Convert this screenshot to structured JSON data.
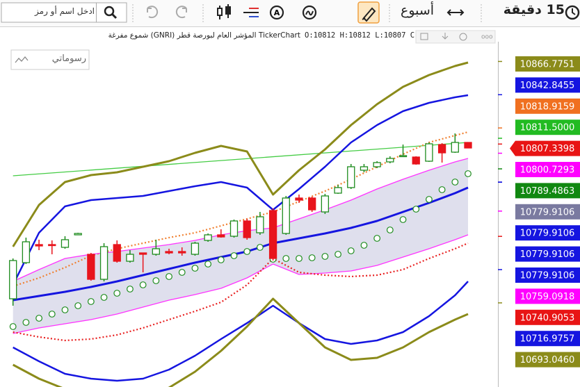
{
  "toolbar": {
    "interval": "15 دقيقة",
    "period": "أسبوع",
    "search_placeholder": "ادخل اسم أو رمز"
  },
  "info": {
    "title": "TickerChart المؤشر العام لبورصة قطر (GNRI) شموع مفرغة",
    "open": "O:10812",
    "high": "H:10812",
    "low": "L:10807",
    "close": "C"
  },
  "drawings_label": "رسوماتي",
  "chart_data": {
    "type": "candlestick",
    "xlim": [
      -1,
      37.3
    ],
    "ylim": [
      10632.5,
      10881
    ],
    "candles": {
      "up_color": "#1e8c1e",
      "down_color": "#e8141c",
      "open": [
        10696,
        10722,
        10735,
        10735,
        10733,
        10742,
        10728,
        10710,
        10735,
        10723,
        10729,
        10728,
        10730,
        10730,
        10728,
        10738,
        10742,
        10741,
        10752,
        10743.5,
        10759.5,
        10743,
        10768.5,
        10768.5,
        10758.5,
        10772,
        10776,
        10788.5,
        10791,
        10794.5,
        10798.5,
        10798,
        10795,
        10807,
        10801.5,
        10808.5
      ],
      "high": [
        10725,
        10740,
        10738.5,
        10738,
        10741,
        10743.5,
        10729,
        10736,
        10738,
        10731,
        10729,
        10738.5,
        10732,
        10733,
        10737,
        10743,
        10746,
        10753,
        10753.5,
        10758.5,
        10761,
        10770,
        10771,
        10769.5,
        10771.5,
        10778,
        10793,
        10793,
        10795,
        10798.5,
        10807,
        10798.5,
        10808.5,
        10808,
        10815,
        10808.5
      ],
      "low": [
        10691,
        10721,
        10731,
        10728,
        10732,
        10742,
        10709,
        10708.5,
        10722,
        10722,
        10715,
        10727,
        10728,
        10727,
        10727,
        10737,
        10740,
        10740,
        10738.5,
        10742,
        10723.5,
        10742,
        10765,
        10758.5,
        10757,
        10771.5,
        10775,
        10787,
        10790,
        10793.5,
        10798,
        10792.5,
        10794.5,
        10794,
        10801,
        10804.5
      ],
      "close": [
        10723.5,
        10737,
        10734,
        10734.5,
        10738.5,
        10743,
        10710,
        10733.5,
        10723,
        10728,
        10728,
        10732,
        10729,
        10729,
        10736,
        10742,
        10740.5,
        10752,
        10740,
        10755,
        10725,
        10768.5,
        10767,
        10760,
        10770,
        10776,
        10791,
        10791,
        10794,
        10797,
        10799,
        10793,
        10807.5,
        10801,
        10808.5,
        10804.5
      ]
    },
    "line_x": [
      0,
      2,
      4,
      6,
      8,
      10,
      12,
      14,
      16,
      18,
      20,
      22,
      24,
      26,
      28,
      30,
      32,
      34,
      35
    ],
    "series": [
      {
        "color": "#8b8b1a",
        "width": 3,
        "dash": "none",
        "values": [
          10733.5,
          10763.5,
          10780,
          10785,
          10787,
          10791,
          10795,
          10801,
          10806,
          10802,
          10771,
          10788.5,
          10803.5,
          10821,
          10836,
          10848.5,
          10857,
          10863.5,
          10866
        ]
      },
      {
        "color": "#1515e0",
        "width": 2.5,
        "dash": "none",
        "values": [
          10706,
          10743.5,
          10762.5,
          10767,
          10768.5,
          10770,
          10773.5,
          10777,
          10780,
          10776,
          10760,
          10775,
          10791,
          10808.5,
          10821,
          10831,
          10837,
          10841,
          10842.5
        ]
      },
      {
        "color": "#f08030",
        "width": 2.2,
        "dash": "2 3",
        "values": [
          10705,
          10711,
          10718.5,
          10727,
          10732,
          10736,
          10740,
          10743.5,
          10748.5,
          10753.5,
          10758.5,
          10766,
          10773.5,
          10782,
          10791,
          10800,
          10808.5,
          10813.5,
          10816
        ]
      },
      {
        "color": "#ff33ff",
        "width": 1.3,
        "dash": "none",
        "values": [
          10708.5,
          10717,
          10725,
          10728,
          10730,
          10732.5,
          10735,
          10738,
          10742,
          10745,
          10747,
          10753.5,
          10760,
          10767,
          10775,
          10782,
          10788.5,
          10794.5,
          10797
        ]
      },
      {
        "color": "#1515e0",
        "width": 3,
        "dash": "none",
        "values": [
          10695,
          10698,
          10701,
          10704.5,
          10708.5,
          10713,
          10717.5,
          10722,
          10726,
          10730,
          10736,
          10739.5,
          10743,
          10747,
          10752,
          10758.5,
          10765,
          10772,
          10776
        ]
      },
      {
        "color": "#ff33ff",
        "width": 1.3,
        "dash": "none",
        "values": [
          10671,
          10675,
          10678,
          10681,
          10685,
          10690,
          10695,
          10699,
          10703.5,
          10711,
          10721,
          10713.5,
          10714.5,
          10716,
          10720,
          10726,
          10732,
          10738.5,
          10742
        ]
      },
      {
        "color": "#e82020",
        "width": 2.2,
        "dash": "2 3",
        "values": [
          10672,
          10668.5,
          10666,
          10667,
          10670,
          10675,
          10681,
          10687,
          10693.5,
          10706,
          10725,
          10715,
          10713,
          10712,
          10713,
          10717,
          10725,
          10732,
          10736
        ]
      },
      {
        "color": "#1515e0",
        "width": 2.5,
        "dash": "none",
        "values": [
          10661,
          10651,
          10642,
          10638.5,
          10637,
          10638.5,
          10645,
          10655,
          10667,
          10678.5,
          10691,
          10678.5,
          10667,
          10663.5,
          10666,
          10672,
          10683.5,
          10698.5,
          10708.5
        ]
      },
      {
        "color": "#8b8b1a",
        "width": 3,
        "dash": "none",
        "values": [
          10648.5,
          10638.5,
          10631,
          10627,
          10625,
          10626,
          10632,
          10643.5,
          10658.5,
          10676,
          10696,
          10678.5,
          10661,
          10652,
          10653.5,
          10661,
          10672,
          10681,
          10685
        ]
      }
    ],
    "band": {
      "color": "#d9d9ea"
    },
    "trendline": {
      "color": "#44cc44",
      "x": [
        0,
        35
      ],
      "values": [
        10784.5,
        10808.5
      ]
    },
    "sar": {
      "color": "#1e8c1e",
      "values": [
        10676,
        10679,
        10682,
        10685,
        10688,
        10691,
        10694,
        10697,
        10700,
        10703,
        10706,
        10709,
        10712,
        10715,
        10718,
        10721,
        10724,
        10727,
        10730,
        10733,
        10724.5,
        10725,
        10725,
        10725.5,
        10726.5,
        10728,
        10730.5,
        10734.5,
        10739.5,
        10745.5,
        10753,
        10760.5,
        10767.5,
        10774.5,
        10780,
        10786
      ]
    },
    "price_labels": [
      {
        "value": 10866.7751,
        "label": "10866.7751",
        "color": "#8b8b1a"
      },
      {
        "value": 10842.8455,
        "label": "10842.8455",
        "color": "#1515e0"
      },
      {
        "value": 10818.9159,
        "label": "10818.9159",
        "color": "#f07020"
      },
      {
        "value": 10811.5,
        "label": "10811.5000",
        "color": "#22bb22"
      },
      {
        "value": 10807.3398,
        "label": "10807.3398",
        "color": "#e81414"
      },
      {
        "value": 10800.7293,
        "label": "10800.7293",
        "color": "#ff00ff"
      },
      {
        "value": 10789.4863,
        "label": "10789.4863",
        "color": "#118811"
      },
      {
        "value": 10779.9106,
        "label": "10779.9106",
        "color": "#7a7aa0"
      },
      {
        "value": 10779.9106,
        "label": "10779.9106",
        "color": "#1515e0"
      },
      {
        "value": 10779.9106,
        "label": "10779.9106",
        "color": "#1515e0"
      },
      {
        "value": 10779.9106,
        "label": "10779.9106",
        "color": "#1515e0"
      },
      {
        "value": 10759.0918,
        "label": "10759.0918",
        "color": "#ff00ff"
      },
      {
        "value": 10740.9053,
        "label": "10740.9053",
        "color": "#e81414"
      },
      {
        "value": 10716.9757,
        "label": "10716.9757",
        "color": "#1515e0"
      },
      {
        "value": 10693.046,
        "label": "10693.0460",
        "color": "#8b8b1a"
      }
    ]
  }
}
